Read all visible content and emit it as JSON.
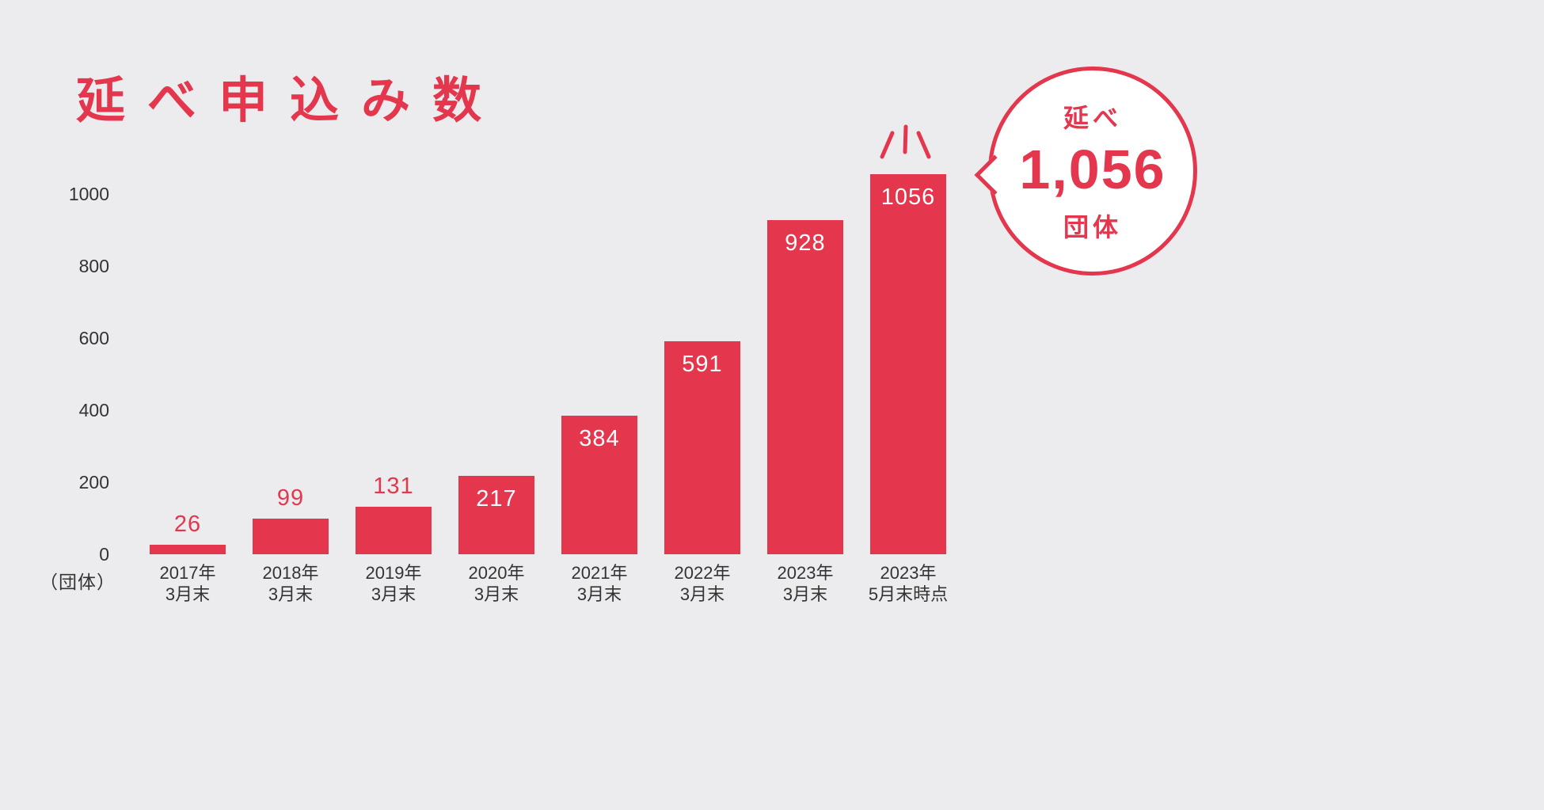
{
  "title": "延べ申込み数",
  "colors": {
    "accent": "#e4374d",
    "background": "#ececee",
    "text": "#333333",
    "bar_label_inside": "#ffffff"
  },
  "chart_data": {
    "type": "bar",
    "title": "延べ申込み数",
    "categories": [
      [
        "2017年",
        "3月末"
      ],
      [
        "2018年",
        "3月末"
      ],
      [
        "2019年",
        "3月末"
      ],
      [
        "2020年",
        "3月末"
      ],
      [
        "2021年",
        "3月末"
      ],
      [
        "2022年",
        "3月末"
      ],
      [
        "2023年",
        "3月末"
      ],
      [
        "2023年",
        "5月末時点"
      ]
    ],
    "values": [
      26,
      99,
      131,
      217,
      384,
      591,
      928,
      1056
    ],
    "yticks": [
      1000,
      800,
      600,
      400,
      200,
      0
    ],
    "y_unit_label": "（団体）",
    "ylim": [
      0,
      1100
    ],
    "bar_color": "#e4374d",
    "value_label_inside_min": 200,
    "grid": false,
    "legend": "none"
  },
  "callout": {
    "top_label": "延べ",
    "value": "1,056",
    "bottom_label": "団体"
  }
}
